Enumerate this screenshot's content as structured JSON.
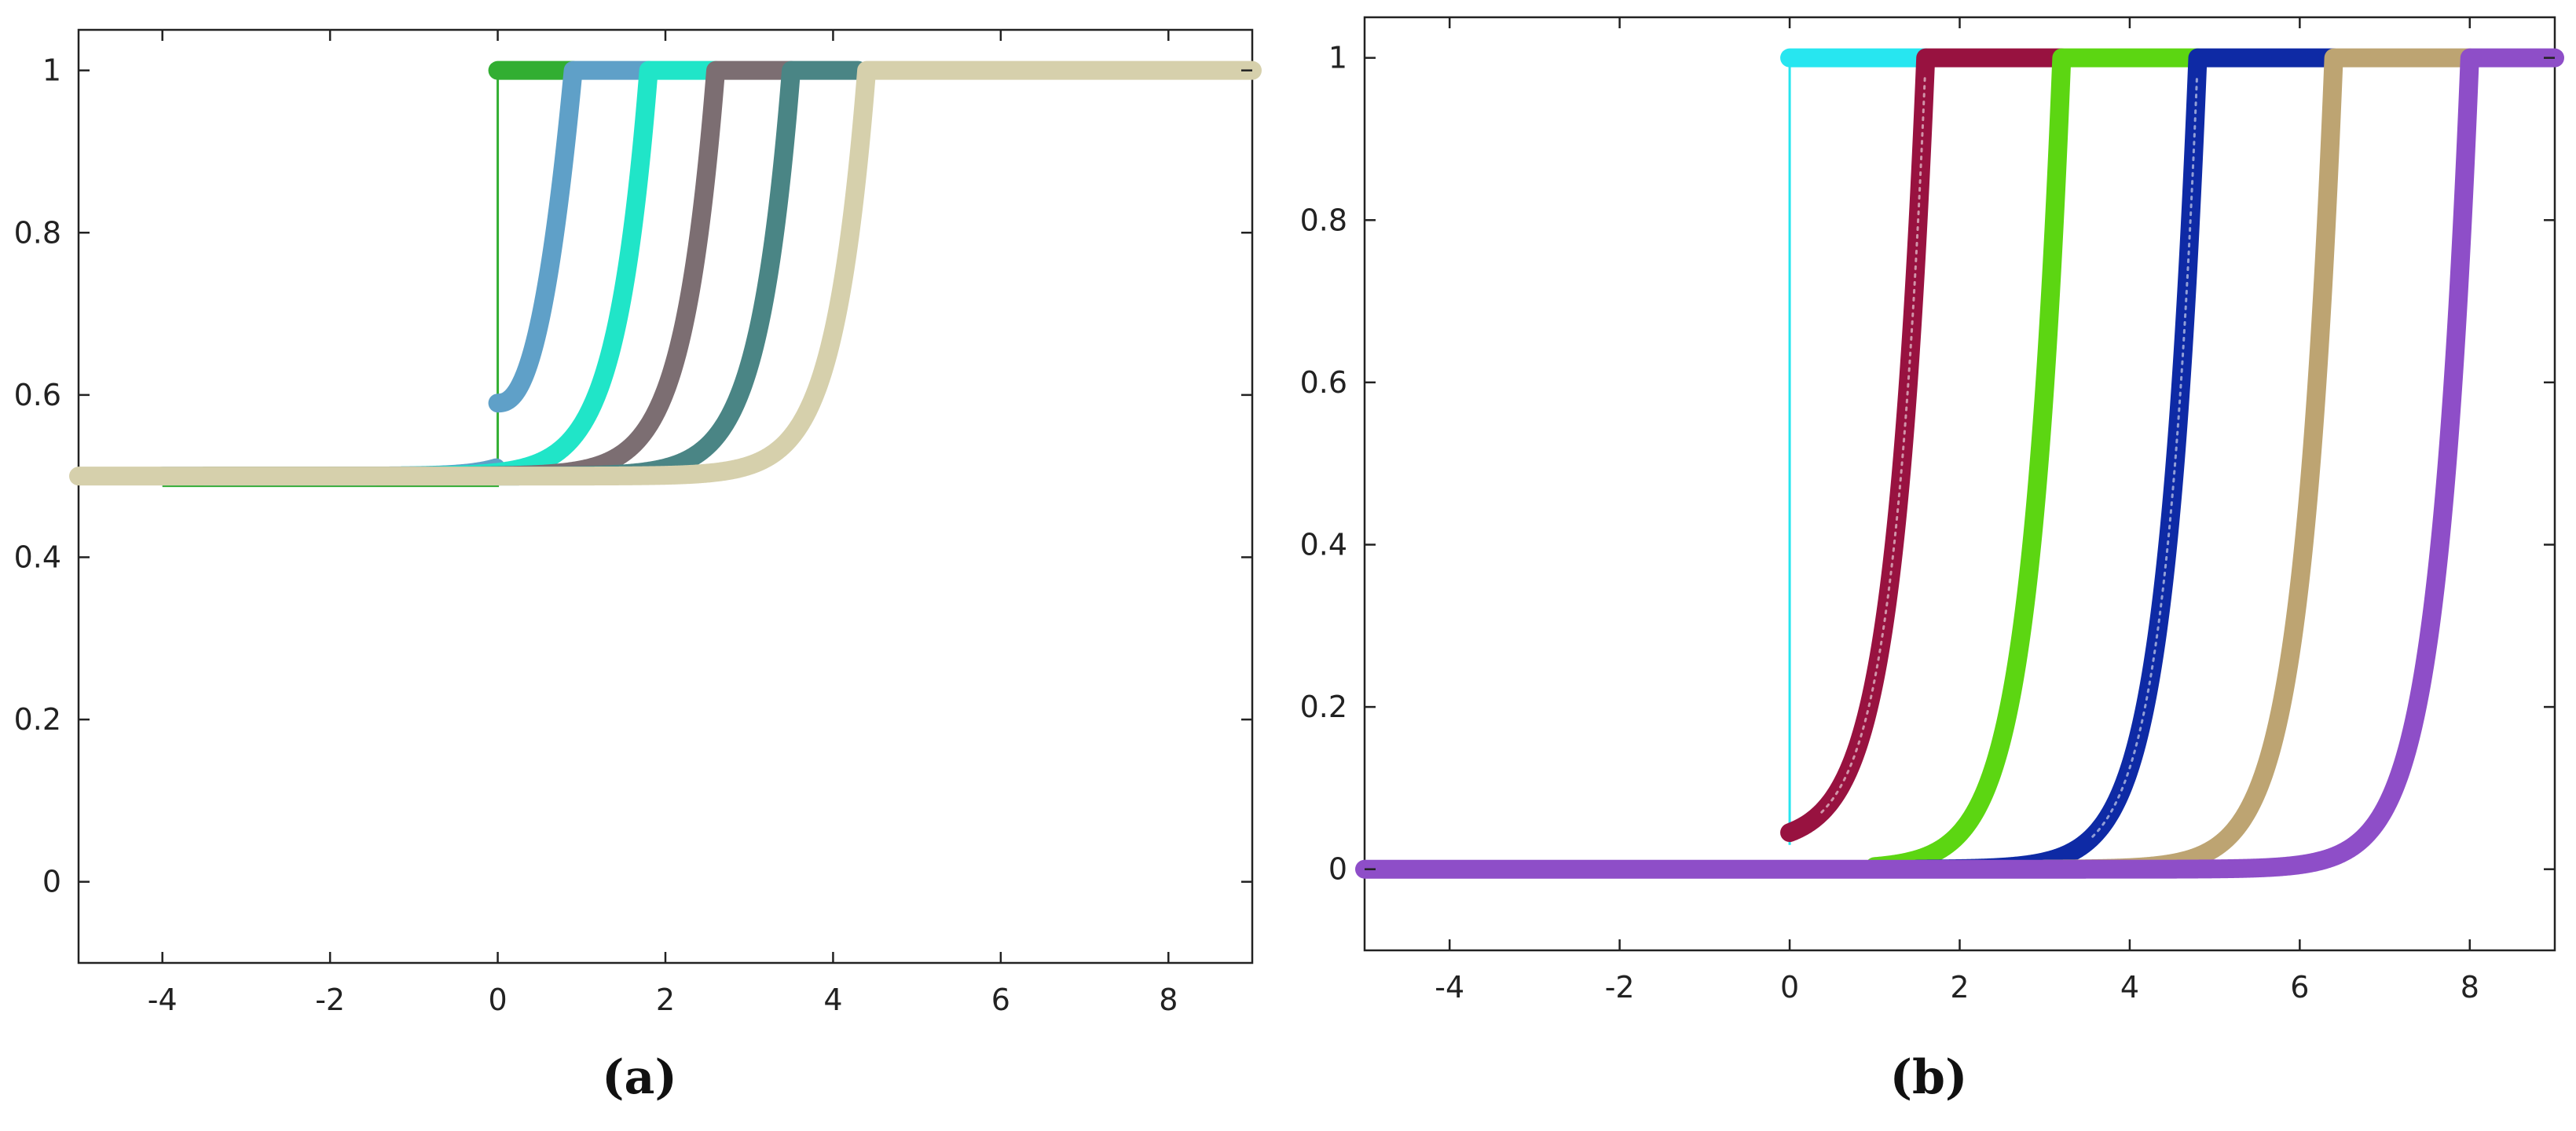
{
  "chart_data": [
    {
      "type": "line",
      "panel_label": "(a)",
      "xlim": [
        -5,
        9
      ],
      "ylim": [
        -0.1,
        1.05
      ],
      "xticks": [
        "-4",
        "-2",
        "0",
        "2",
        "4",
        "6",
        "8"
      ],
      "xtick_values": [
        -4,
        -2,
        0,
        2,
        4,
        6,
        8
      ],
      "yticks": [
        "0",
        "0.2",
        "0.4",
        "0.6",
        "0.8",
        "1"
      ],
      "ytick_values": [
        0,
        0.2,
        0.4,
        0.6,
        0.8,
        1
      ],
      "grid": false,
      "legend": "none",
      "series": [
        {
          "color": "#32AE32",
          "marker": "filled",
          "step": true,
          "x_start": -4.0,
          "low": 0.488,
          "jump_x": 0.0,
          "x_end": 0.9
        },
        {
          "color": "#5FA0C8",
          "marker": "filled",
          "low": 0.5,
          "jump_x": 0.0,
          "jump_y": 0.59,
          "top_x": 0.9,
          "x_start": -4.0,
          "x_end": 1.8
        },
        {
          "color": "#20E5C8",
          "marker": "filled",
          "low": 0.5,
          "top_x": 1.8,
          "x_start": -3.5,
          "x_end": 2.6
        },
        {
          "color": "#7C6E72",
          "marker": "filled",
          "low": 0.5,
          "top_x": 2.6,
          "x_start": -3.5,
          "x_end": 3.5
        },
        {
          "color": "#4A8585",
          "marker": "filled",
          "low": 0.5,
          "top_x": 3.5,
          "x_start": -2.0,
          "x_end": 4.3
        },
        {
          "color": "#D6D0AC",
          "marker": "filled",
          "low": 0.5,
          "top_x": 4.4,
          "x_start": -5.0,
          "x_end": 9.0
        }
      ]
    },
    {
      "type": "line",
      "panel_label": "(b)",
      "xlim": [
        -5,
        9
      ],
      "ylim": [
        -0.1,
        1.05
      ],
      "xticks": [
        "-4",
        "-2",
        "0",
        "2",
        "4",
        "6",
        "8"
      ],
      "xtick_values": [
        -4,
        -2,
        0,
        2,
        4,
        6,
        8
      ],
      "yticks": [
        "0",
        "0.2",
        "0.4",
        "0.6",
        "0.8",
        "1"
      ],
      "ytick_values": [
        0,
        0.2,
        0.4,
        0.6,
        0.8,
        1
      ],
      "grid": false,
      "legend": "none",
      "series": [
        {
          "color": "#27E6F0",
          "marker": "filled",
          "step": true,
          "x_start": 0.0,
          "low": 0.03,
          "jump_x": 0.0,
          "x_end": 1.6
        },
        {
          "color": "#981240",
          "marker": "open",
          "low": 0.03,
          "top_x": 1.6,
          "x_start": 0.0,
          "x_end": 3.2
        },
        {
          "color": "#5CD612",
          "marker": "filled",
          "low": 0.0,
          "top_x": 3.2,
          "x_start": 1.0,
          "x_end": 4.8
        },
        {
          "color": "#0E2AA5",
          "marker": "open",
          "low": 0.0,
          "top_x": 4.8,
          "x_start": 1.5,
          "x_end": 6.4
        },
        {
          "color": "#BDA472",
          "marker": "filled",
          "low": 0.0,
          "top_x": 6.4,
          "x_start": 3.0,
          "x_end": 8.0
        },
        {
          "color": "#8E4EC8",
          "marker": "filled",
          "low": 0.0,
          "top_x": 8.0,
          "x_start": -5.0,
          "x_end": 9.0
        }
      ]
    }
  ]
}
